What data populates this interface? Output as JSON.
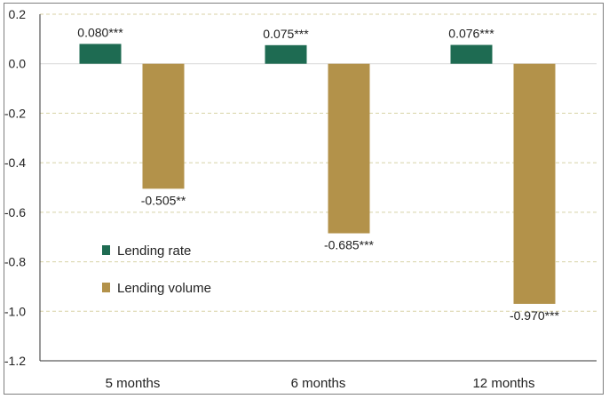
{
  "chart_data": {
    "type": "bar",
    "categories": [
      "5 months",
      "6 months",
      "12 months"
    ],
    "series": [
      {
        "name": "Lending rate",
        "color": "#1e6b52",
        "values": [
          0.08,
          0.075,
          0.076
        ],
        "labels": [
          "0.080***",
          "0.075***",
          "0.076***"
        ]
      },
      {
        "name": "Lending volume",
        "color": "#b3924a",
        "values": [
          -0.505,
          -0.685,
          -0.97
        ],
        "labels": [
          "-0.505**",
          "-0.685***",
          "-0.970***"
        ]
      }
    ],
    "ylim": [
      -1.2,
      0.2
    ],
    "yticks": [
      "0.2",
      "0.0",
      "-0.2",
      "-0.4",
      "-0.6",
      "-0.8",
      "-1.0",
      "-1.2"
    ],
    "ytick_values": [
      0.2,
      0.0,
      -0.2,
      -0.4,
      -0.6,
      -0.8,
      -1.0,
      -1.2
    ],
    "grid": "horizontal-dashed",
    "legend_position": "center-left"
  }
}
